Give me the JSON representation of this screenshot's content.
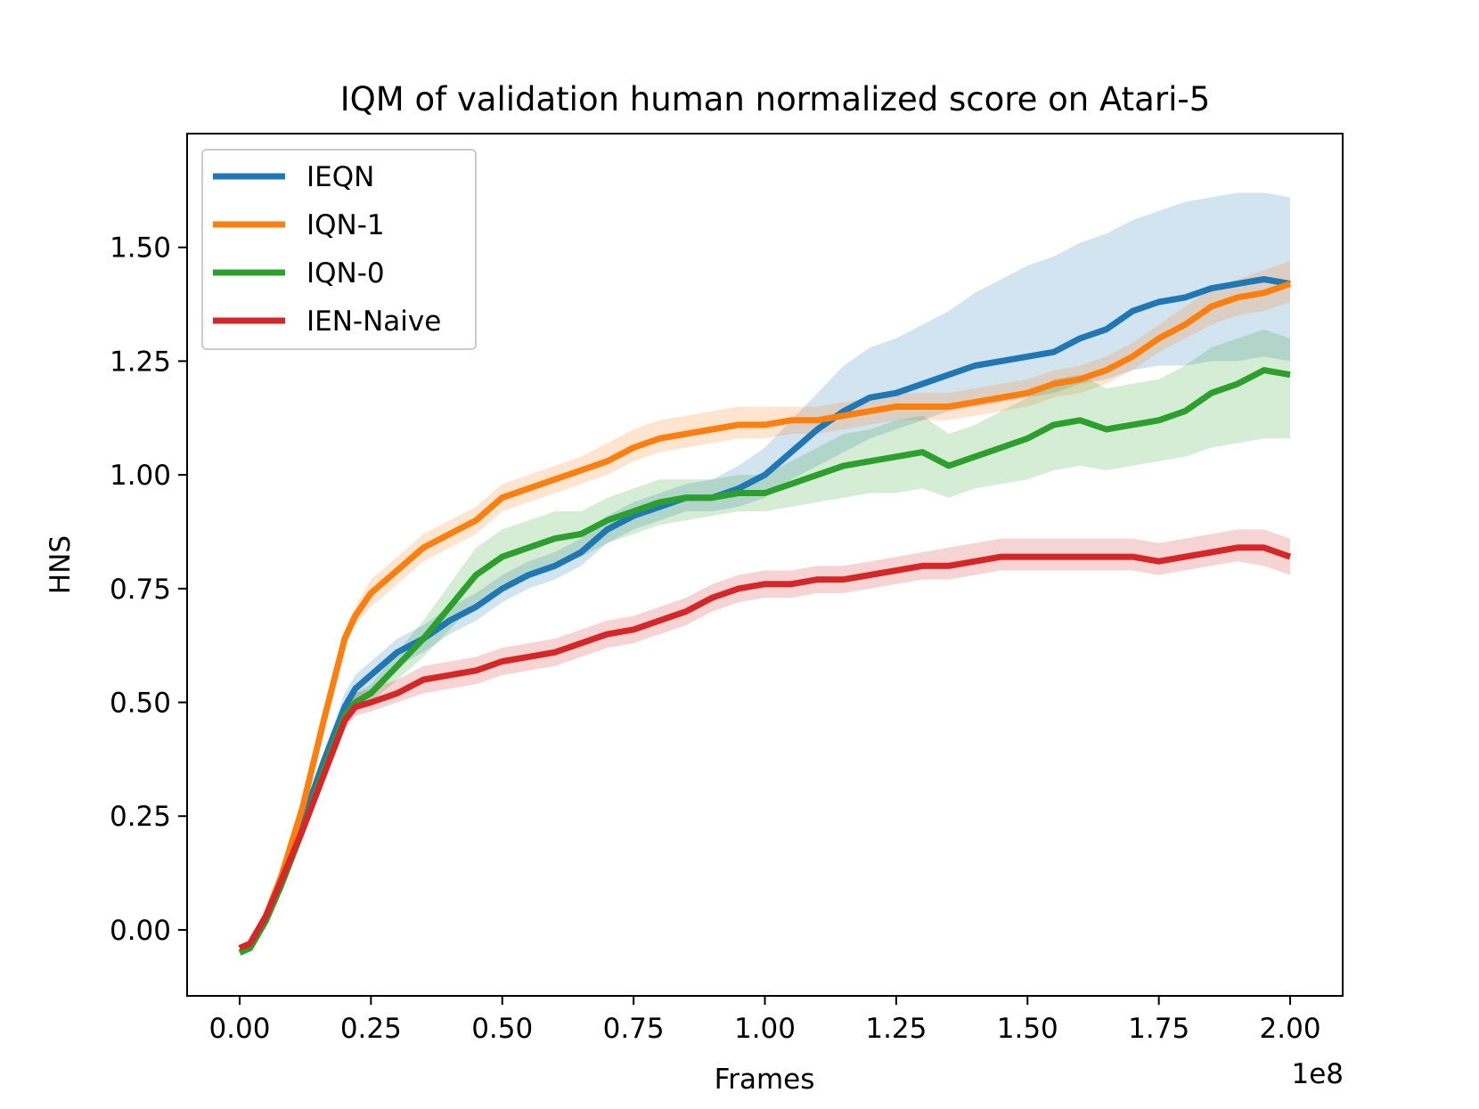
{
  "chart_data": {
    "type": "line",
    "title": "IQM of validation human normalized score on Atari-5",
    "xlabel": "Frames",
    "ylabel": "HNS",
    "x_multiplier_label": "1e8",
    "xlim": [
      -0.1,
      2.1
    ],
    "ylim": [
      -0.145,
      1.75
    ],
    "grid": false,
    "legend_position": "upper-left",
    "x_ticks": [
      0.0,
      0.25,
      0.5,
      0.75,
      1.0,
      1.25,
      1.5,
      1.75,
      2.0
    ],
    "x_tick_labels": [
      "0.00",
      "0.25",
      "0.50",
      "0.75",
      "1.00",
      "1.25",
      "1.50",
      "1.75",
      "2.00"
    ],
    "y_ticks": [
      0.0,
      0.25,
      0.5,
      0.75,
      1.0,
      1.25,
      1.5
    ],
    "y_tick_labels": [
      "0.00",
      "0.25",
      "0.50",
      "0.75",
      "1.00",
      "1.25",
      "1.50"
    ],
    "x": [
      0.0,
      0.02,
      0.05,
      0.08,
      0.12,
      0.16,
      0.2,
      0.22,
      0.25,
      0.3,
      0.35,
      0.4,
      0.45,
      0.5,
      0.55,
      0.6,
      0.65,
      0.7,
      0.75,
      0.8,
      0.85,
      0.9,
      0.95,
      1.0,
      1.05,
      1.1,
      1.15,
      1.2,
      1.25,
      1.3,
      1.35,
      1.4,
      1.45,
      1.5,
      1.55,
      1.6,
      1.65,
      1.7,
      1.75,
      1.8,
      1.85,
      1.9,
      1.95,
      2.0
    ],
    "series": [
      {
        "name": "IEQN",
        "color": "#1f77b4",
        "values": [
          -0.04,
          -0.03,
          0.03,
          0.11,
          0.24,
          0.37,
          0.49,
          0.53,
          0.56,
          0.61,
          0.64,
          0.68,
          0.71,
          0.75,
          0.78,
          0.8,
          0.83,
          0.88,
          0.91,
          0.93,
          0.95,
          0.95,
          0.97,
          1.0,
          1.05,
          1.1,
          1.14,
          1.17,
          1.18,
          1.2,
          1.22,
          1.24,
          1.25,
          1.26,
          1.27,
          1.3,
          1.32,
          1.36,
          1.38,
          1.39,
          1.41,
          1.42,
          1.43,
          1.42
        ],
        "lower": [
          -0.04,
          -0.03,
          0.02,
          0.1,
          0.22,
          0.35,
          0.46,
          0.5,
          0.53,
          0.58,
          0.61,
          0.65,
          0.68,
          0.72,
          0.75,
          0.77,
          0.8,
          0.85,
          0.88,
          0.9,
          0.92,
          0.92,
          0.93,
          0.95,
          0.99,
          1.02,
          1.05,
          1.08,
          1.1,
          1.12,
          1.14,
          1.15,
          1.16,
          1.17,
          1.18,
          1.2,
          1.21,
          1.23,
          1.24,
          1.24,
          1.25,
          1.25,
          1.26,
          1.25
        ],
        "upper": [
          -0.04,
          -0.03,
          0.04,
          0.12,
          0.26,
          0.39,
          0.52,
          0.56,
          0.59,
          0.64,
          0.67,
          0.71,
          0.74,
          0.78,
          0.81,
          0.83,
          0.86,
          0.91,
          0.94,
          0.96,
          0.98,
          0.99,
          1.02,
          1.06,
          1.12,
          1.18,
          1.24,
          1.28,
          1.3,
          1.33,
          1.36,
          1.4,
          1.43,
          1.46,
          1.48,
          1.51,
          1.53,
          1.56,
          1.58,
          1.6,
          1.61,
          1.62,
          1.62,
          1.61
        ]
      },
      {
        "name": "IQN-1",
        "color": "#ff7f0e",
        "values": [
          -0.04,
          -0.03,
          0.03,
          0.12,
          0.27,
          0.46,
          0.64,
          0.69,
          0.74,
          0.79,
          0.84,
          0.87,
          0.9,
          0.95,
          0.97,
          0.99,
          1.01,
          1.03,
          1.06,
          1.08,
          1.09,
          1.1,
          1.11,
          1.11,
          1.12,
          1.12,
          1.13,
          1.14,
          1.15,
          1.15,
          1.15,
          1.16,
          1.17,
          1.18,
          1.2,
          1.21,
          1.23,
          1.26,
          1.3,
          1.33,
          1.37,
          1.39,
          1.4,
          1.42
        ],
        "lower": [
          -0.04,
          -0.03,
          0.02,
          0.11,
          0.25,
          0.44,
          0.62,
          0.67,
          0.71,
          0.76,
          0.81,
          0.84,
          0.87,
          0.92,
          0.94,
          0.96,
          0.98,
          1.0,
          1.03,
          1.05,
          1.06,
          1.07,
          1.08,
          1.08,
          1.09,
          1.09,
          1.1,
          1.11,
          1.12,
          1.12,
          1.12,
          1.13,
          1.14,
          1.15,
          1.17,
          1.18,
          1.2,
          1.23,
          1.27,
          1.3,
          1.33,
          1.35,
          1.36,
          1.38
        ],
        "upper": [
          -0.04,
          -0.03,
          0.04,
          0.13,
          0.29,
          0.48,
          0.66,
          0.71,
          0.77,
          0.82,
          0.87,
          0.9,
          0.93,
          0.98,
          1.0,
          1.02,
          1.04,
          1.07,
          1.1,
          1.12,
          1.13,
          1.14,
          1.15,
          1.15,
          1.15,
          1.15,
          1.16,
          1.17,
          1.18,
          1.18,
          1.18,
          1.19,
          1.2,
          1.21,
          1.23,
          1.24,
          1.26,
          1.29,
          1.33,
          1.37,
          1.41,
          1.43,
          1.45,
          1.47
        ]
      },
      {
        "name": "IQN-0",
        "color": "#2ca02c",
        "values": [
          -0.05,
          -0.04,
          0.02,
          0.1,
          0.22,
          0.35,
          0.47,
          0.5,
          0.52,
          0.58,
          0.64,
          0.71,
          0.78,
          0.82,
          0.84,
          0.86,
          0.87,
          0.9,
          0.92,
          0.94,
          0.95,
          0.95,
          0.96,
          0.96,
          0.98,
          1.0,
          1.02,
          1.03,
          1.04,
          1.05,
          1.02,
          1.04,
          1.06,
          1.08,
          1.11,
          1.12,
          1.1,
          1.11,
          1.12,
          1.14,
          1.18,
          1.2,
          1.23,
          1.22
        ],
        "lower": [
          -0.05,
          -0.04,
          0.01,
          0.09,
          0.21,
          0.34,
          0.46,
          0.49,
          0.5,
          0.55,
          0.6,
          0.66,
          0.72,
          0.76,
          0.78,
          0.8,
          0.82,
          0.85,
          0.87,
          0.89,
          0.9,
          0.91,
          0.92,
          0.92,
          0.93,
          0.94,
          0.95,
          0.96,
          0.96,
          0.97,
          0.95,
          0.97,
          0.98,
          0.99,
          1.01,
          1.02,
          1.01,
          1.02,
          1.03,
          1.04,
          1.06,
          1.07,
          1.08,
          1.08
        ],
        "upper": [
          -0.05,
          -0.04,
          0.03,
          0.11,
          0.23,
          0.36,
          0.48,
          0.52,
          0.54,
          0.61,
          0.68,
          0.76,
          0.84,
          0.88,
          0.9,
          0.92,
          0.92,
          0.95,
          0.97,
          0.99,
          0.99,
          0.99,
          1.0,
          1.0,
          1.03,
          1.06,
          1.09,
          1.1,
          1.12,
          1.13,
          1.09,
          1.11,
          1.14,
          1.17,
          1.21,
          1.22,
          1.19,
          1.2,
          1.21,
          1.24,
          1.28,
          1.3,
          1.32,
          1.3
        ]
      },
      {
        "name": "IEN-Naive",
        "color": "#d62728",
        "values": [
          -0.04,
          -0.03,
          0.03,
          0.11,
          0.22,
          0.34,
          0.46,
          0.49,
          0.5,
          0.52,
          0.55,
          0.56,
          0.57,
          0.59,
          0.6,
          0.61,
          0.63,
          0.65,
          0.66,
          0.68,
          0.7,
          0.73,
          0.75,
          0.76,
          0.76,
          0.77,
          0.77,
          0.78,
          0.79,
          0.8,
          0.8,
          0.81,
          0.82,
          0.82,
          0.82,
          0.82,
          0.82,
          0.82,
          0.81,
          0.82,
          0.83,
          0.84,
          0.84,
          0.82
        ],
        "lower": [
          -0.04,
          -0.03,
          0.02,
          0.1,
          0.21,
          0.33,
          0.44,
          0.47,
          0.48,
          0.5,
          0.52,
          0.53,
          0.54,
          0.56,
          0.57,
          0.58,
          0.6,
          0.62,
          0.63,
          0.65,
          0.67,
          0.7,
          0.72,
          0.73,
          0.73,
          0.74,
          0.74,
          0.75,
          0.76,
          0.77,
          0.77,
          0.78,
          0.79,
          0.79,
          0.79,
          0.79,
          0.79,
          0.79,
          0.78,
          0.79,
          0.8,
          0.81,
          0.8,
          0.78
        ],
        "upper": [
          -0.04,
          -0.03,
          0.04,
          0.12,
          0.23,
          0.35,
          0.48,
          0.52,
          0.53,
          0.55,
          0.58,
          0.59,
          0.6,
          0.62,
          0.63,
          0.64,
          0.66,
          0.68,
          0.69,
          0.71,
          0.73,
          0.76,
          0.78,
          0.79,
          0.79,
          0.8,
          0.8,
          0.81,
          0.82,
          0.83,
          0.84,
          0.85,
          0.86,
          0.86,
          0.86,
          0.86,
          0.86,
          0.86,
          0.85,
          0.86,
          0.87,
          0.88,
          0.88,
          0.86
        ]
      }
    ]
  }
}
